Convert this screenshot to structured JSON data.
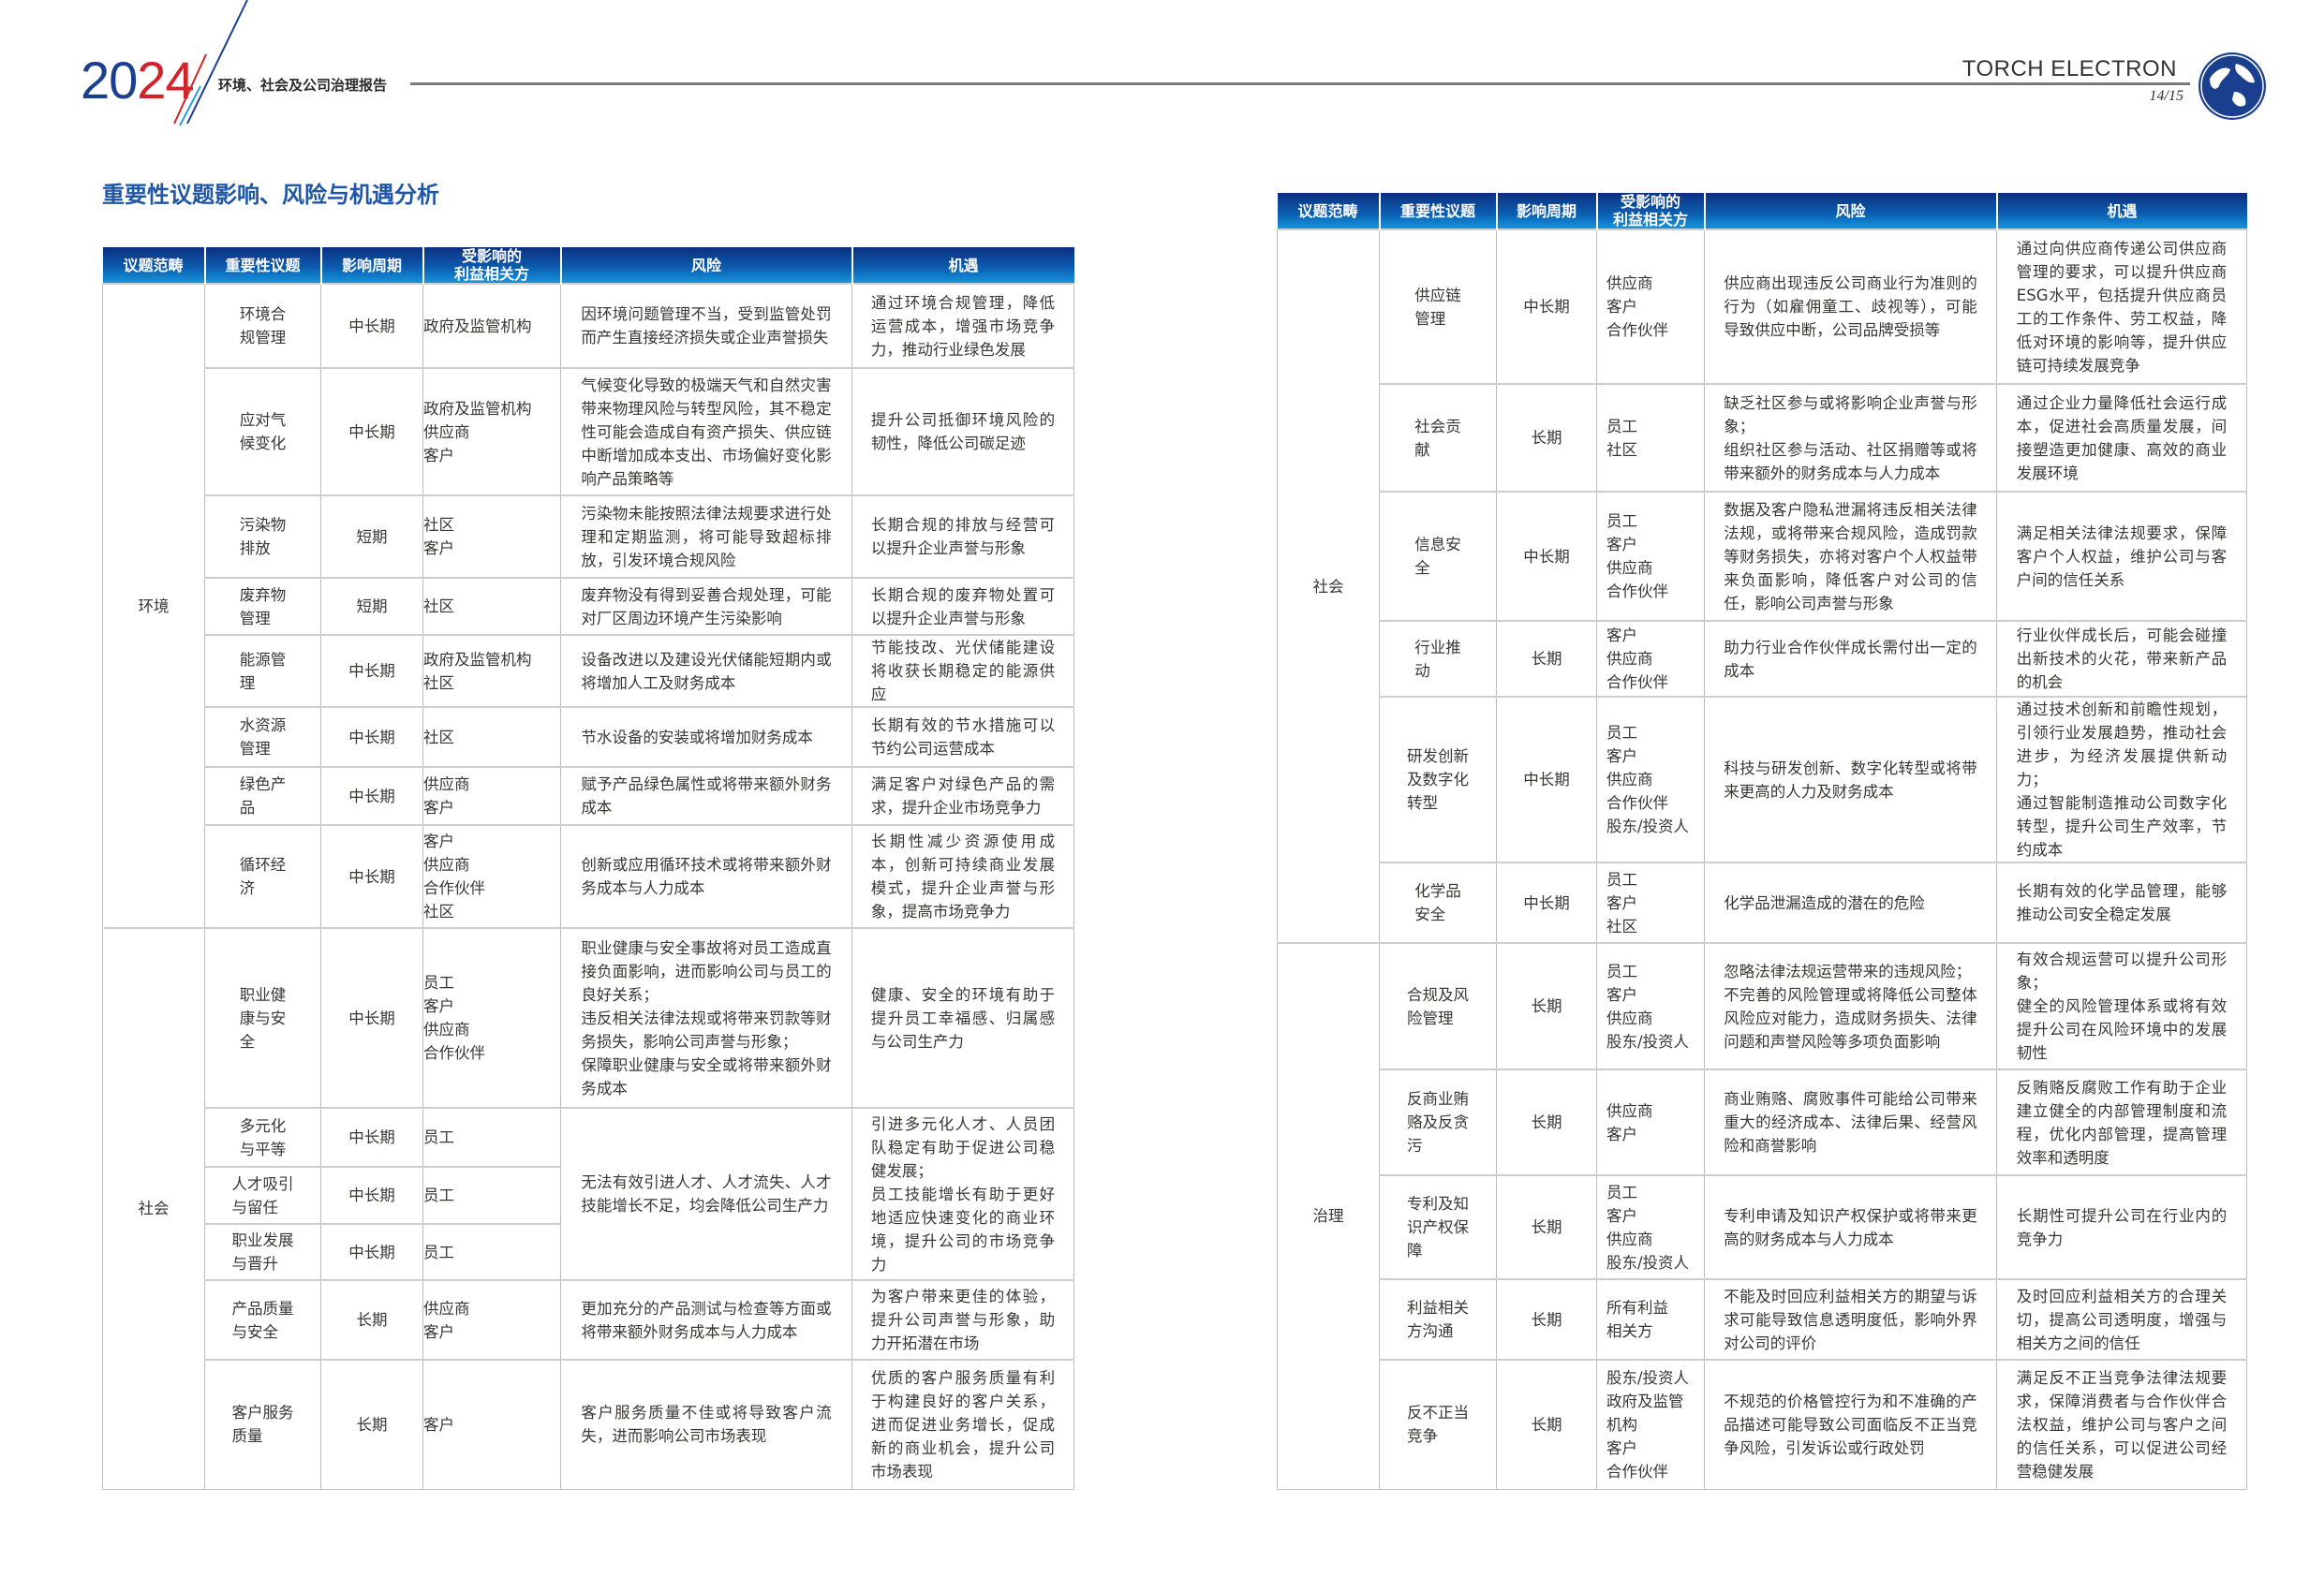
{
  "header": {
    "year_prefix": "20",
    "year_suffix": "24",
    "report_title": "环境、社会及公司治理报告",
    "brand": "TORCH ELECTRON",
    "page": "14/15",
    "colors": {
      "blue": "#1b3f8f",
      "red": "#d2232a",
      "header_blue": "#0c5fb2"
    }
  },
  "page_title": "重要性议题影响、风险与机遇分析",
  "tables": [
    {
      "columns": [
        "议题范畴",
        "重要性议题",
        "影响周期",
        "受影响的\n利益相关方",
        "风险",
        "机遇"
      ],
      "groups": [
        {
          "category": "环境",
          "items": [
            {
              "topic": "环境合\n规管理",
              "period": "中长期",
              "stakeholders": [
                "政府及监管机构"
              ],
              "risk": "因环境问题管理不当，受到监管处罚而产生直接经济损失或企业声誉损失",
              "opportunity": "通过环境合规管理，降低运营成本，增强市场竞争力，推动行业绿色发展"
            },
            {
              "topic": "应对气\n候变化",
              "period": "中长期",
              "stakeholders": [
                "政府及监管机构",
                "供应商",
                "客户"
              ],
              "risk": "气候变化导致的极端天气和自然灾害带来物理风险与转型风险，其不稳定性可能会造成自有资产损失、供应链中断增加成本支出、市场偏好变化影响产品策略等",
              "opportunity": "提升公司抵御环境风险的韧性，降低公司碳足迹"
            },
            {
              "topic": "污染物\n排放",
              "period": "短期",
              "stakeholders": [
                "社区",
                "客户"
              ],
              "risk": "污染物未能按照法律法规要求进行处理和定期监测，将可能导致超标排放，引发环境合规风险",
              "opportunity": "长期合规的排放与经营可以提升企业声誉与形象"
            },
            {
              "topic": "废弃物\n管理",
              "period": "短期",
              "stakeholders": [
                "社区"
              ],
              "risk": "废弃物没有得到妥善合规处理，可能对厂区周边环境产生污染影响",
              "opportunity": "长期合规的废弃物处置可以提升企业声誉与形象"
            },
            {
              "topic": "能源管\n理",
              "period": "中长期",
              "stakeholders": [
                "政府及监管机构",
                "社区"
              ],
              "risk": "设备改进以及建设光伏储能短期内或将增加人工及财务成本",
              "opportunity": "节能技改、光伏储能建设将收获长期稳定的能源供应"
            },
            {
              "topic": "水资源\n管理",
              "period": "中长期",
              "stakeholders": [
                "社区"
              ],
              "risk": "节水设备的安装或将增加财务成本",
              "opportunity": "长期有效的节水措施可以节约公司运营成本"
            },
            {
              "topic": "绿色产\n品",
              "period": "中长期",
              "stakeholders": [
                "供应商",
                "客户"
              ],
              "risk": "赋予产品绿色属性或将带来额外财务成本",
              "opportunity": "满足客户对绿色产品的需求，提升企业市场竞争力"
            },
            {
              "topic": "循环经\n济",
              "period": "中长期",
              "stakeholders": [
                "客户",
                "供应商",
                "合作伙伴",
                "社区"
              ],
              "risk": "创新或应用循环技术或将带来额外财务成本与人力成本",
              "opportunity": "长期性减少资源使用成本，创新可持续商业发展模式，提升企业声誉与形象，提高市场竞争力"
            }
          ]
        },
        {
          "category": "社会",
          "items": [
            {
              "topic": "职业健\n康与安\n全",
              "period": "中长期",
              "stakeholders": [
                "员工",
                "客户",
                "供应商",
                "合作伙伴"
              ],
              "risk": "职业健康与安全事故将对员工造成直接负面影响，进而影响公司与员工的良好关系；\n违反相关法律法规或将带来罚款等财务损失，影响公司声誉与形象；\n保障职业健康与安全或将带来额外财务成本",
              "opportunity": "健康、安全的环境有助于提升员工幸福感、归属感与公司生产力"
            },
            {
              "topics": [
                {
                  "topic": "多元化\n与平等",
                  "period": "中长期",
                  "stakeholders": [
                    "员工"
                  ]
                },
                {
                  "topic": "人才吸引\n与留任",
                  "period": "中长期",
                  "stakeholders": [
                    "员工"
                  ]
                },
                {
                  "topic": "职业发展\n与晋升",
                  "period": "中长期",
                  "stakeholders": [
                    "员工"
                  ]
                }
              ],
              "risk": "无法有效引进人才、人才流失、人才技能增长不足，均会降低公司生产力",
              "opportunity": "引进多元化人才、人员团队稳定有助于促进公司稳健发展；\n员工技能增长有助于更好地适应快速变化的商业环境，提升公司的市场竞争力"
            },
            {
              "topic": "产品质量\n与安全",
              "period": "长期",
              "stakeholders": [
                "供应商",
                "客户"
              ],
              "risk": "更加充分的产品测试与检查等方面或将带来额外财务成本与人力成本",
              "opportunity": "为客户带来更佳的体验，提升公司声誉与形象，助力开拓潜在市场"
            },
            {
              "topic": "客户服务\n质量",
              "period": "长期",
              "stakeholders": [
                "客户"
              ],
              "risk": "客户服务质量不佳或将导致客户流失，进而影响公司市场表现",
              "opportunity": "优质的客户服务质量有利于构建良好的客户关系，进而促进业务增长，促成新的商业机会，提升公司市场表现"
            }
          ]
        }
      ]
    },
    {
      "columns": [
        "议题范畴",
        "重要性议题",
        "影响周期",
        "受影响的\n利益相关方",
        "风险",
        "机遇"
      ],
      "groups": [
        {
          "category": "社会",
          "items": [
            {
              "topic": "供应链\n管理",
              "period": "中长期",
              "stakeholders": [
                "供应商",
                "客户",
                "合作伙伴"
              ],
              "risk": "供应商出现违反公司商业行为准则的行为（如雇佣童工、歧视等），可能导致供应中断，公司品牌受损等",
              "opportunity": "通过向供应商传递公司供应商管理的要求，可以提升供应商ESG水平，包括提升供应商员工的工作条件、劳工权益，降低对环境的影响等，提升供应链可持续发展竞争"
            },
            {
              "topic": "社会贡\n献",
              "period": "长期",
              "stakeholders": [
                "员工",
                "社区"
              ],
              "risk": "缺乏社区参与或将影响企业声誉与形象；\n组织社区参与活动、社区捐赠等或将带来额外的财务成本与人力成本",
              "opportunity": "通过企业力量降低社会运行成本，促进社会高质量发展，间接塑造更加健康、高效的商业发展环境"
            },
            {
              "topic": "信息安\n全",
              "period": "中长期",
              "stakeholders": [
                "员工",
                "客户",
                "供应商",
                "合作伙伴"
              ],
              "risk": "数据及客户隐私泄漏将违反相关法律法规，或将带来合规风险，造成罚款等财务损失，亦将对客户个人权益带来负面影响，降低客户对公司的信任，影响公司声誉与形象",
              "opportunity": "满足相关法律法规要求，保障客户个人权益，维护公司与客户间的信任关系"
            },
            {
              "topic": "行业推\n动",
              "period": "长期",
              "stakeholders": [
                "客户",
                "供应商",
                "合作伙伴"
              ],
              "risk": "助力行业合作伙伴成长需付出一定的成本",
              "opportunity": "行业伙伴成长后，可能会碰撞出新技术的火花，带来新产品的机会"
            },
            {
              "topic": "研发创新\n及数字化\n转型",
              "period": "中长期",
              "stakeholders": [
                "员工",
                "客户",
                "供应商",
                "合作伙伴",
                "股东/投资人"
              ],
              "risk": "科技与研发创新、数字化转型或将带来更高的人力及财务成本",
              "opportunity": "通过技术创新和前瞻性规划，引领行业发展趋势，推动社会进步，为经济发展提供新动力；\n通过智能制造推动公司数字化转型，提升公司生产效率，节约成本"
            },
            {
              "topic": "化学品\n安全",
              "period": "中长期",
              "stakeholders": [
                "员工",
                "客户",
                "社区"
              ],
              "risk": "化学品泄漏造成的潜在的危险",
              "opportunity": "长期有效的化学品管理，能够推动公司安全稳定发展"
            }
          ]
        },
        {
          "category": "治理",
          "items": [
            {
              "topic": "合规及风\n险管理",
              "period": "长期",
              "stakeholders": [
                "员工",
                "客户",
                "供应商",
                "股东/投资人"
              ],
              "risk": "忽略法律法规运营带来的违规风险；\n不完善的风险管理或将降低公司整体风险应对能力，造成财务损失、法律问题和声誉风险等多项负面影响",
              "opportunity": "有效合规运营可以提升公司形象；\n健全的风险管理体系或将有效提升公司在风险环境中的发展韧性"
            },
            {
              "topic": "反商业贿\n赂及反贪\n污",
              "period": "长期",
              "stakeholders": [
                "供应商",
                "客户"
              ],
              "risk": "商业贿赂、腐败事件可能给公司带来重大的经济成本、法律后果、经营风险和商誉影响",
              "opportunity": "反贿赂反腐败工作有助于企业建立健全的内部管理制度和流程，优化内部管理，提高管理效率和透明度"
            },
            {
              "topic": "专利及知\n识产权保\n障",
              "period": "长期",
              "stakeholders": [
                "员工",
                "客户",
                "供应商",
                "股东/投资人"
              ],
              "risk": "专利申请及知识产权保护或将带来更高的财务成本与人力成本",
              "opportunity": "长期性可提升公司在行业内的竞争力"
            },
            {
              "topic": "利益相关\n方沟通",
              "period": "长期",
              "stakeholders": [
                "所有利益\n相关方"
              ],
              "risk": "不能及时回应利益相关方的期望与诉求可能导致信息透明度低，影响外界对公司的评价",
              "opportunity": "及时回应利益相关方的合理关切，提高公司透明度，增强与相关方之间的信任"
            },
            {
              "topic": "反不正当\n竞争",
              "period": "长期",
              "stakeholders": [
                "股东/投资人",
                "政府及监管机构",
                "客户",
                "合作伙伴"
              ],
              "risk": "不规范的价格管控行为和不准确的产品描述可能导致公司面临反不正当竞争风险，引发诉讼或行政处罚",
              "opportunity": "满足反不正当竞争法律法规要求，保障消费者与合作伙伴合法权益，维护公司与客户之间的信任关系，可以促进公司经营稳健发展"
            }
          ]
        }
      ]
    }
  ]
}
